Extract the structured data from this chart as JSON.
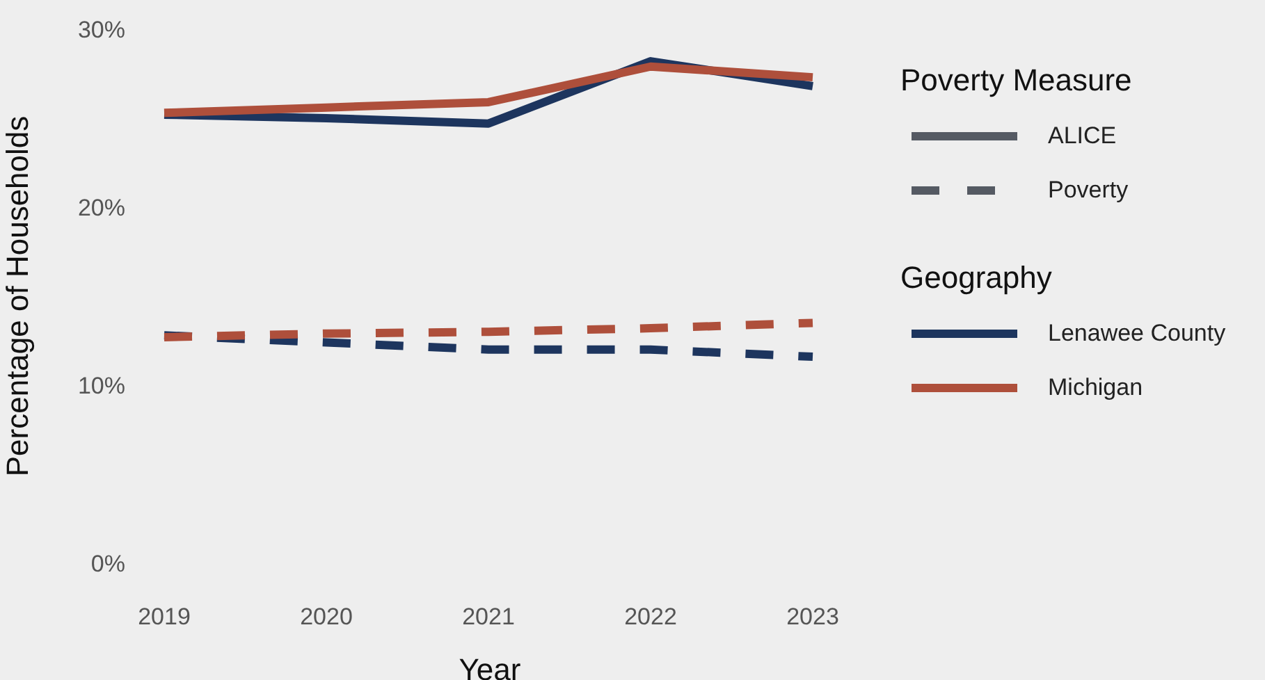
{
  "chart_data": {
    "type": "line",
    "xlabel": "Year",
    "ylabel": "Percentage of Households",
    "legend_title": [
      "Poverty Measure",
      "Geography"
    ],
    "annotations": [
      "ALICE",
      "Poverty"
    ],
    "categories": [
      "2019",
      "2020",
      "2021",
      "2022",
      "2023"
    ],
    "series": [
      {
        "name": "Lenawee County",
        "color": "#1d355e",
        "line_style": "solid",
        "values": [
          25.2,
          25.0,
          24.7,
          28.2,
          26.8
        ]
      },
      {
        "name": "Michigan",
        "color": "#ae4f3b",
        "line_style": "solid",
        "values": [
          25.3,
          25.6,
          25.9,
          27.9,
          27.3
        ]
      },
      {
        "color": "#1d355e",
        "line_style": "dashed",
        "values": [
          12.8,
          12.4,
          12.0,
          12.0,
          11.6
        ]
      },
      {
        "color": "#ae4f3b",
        "line_style": "dashed",
        "values": [
          12.7,
          12.9,
          13.0,
          13.2,
          13.5
        ]
      }
    ],
    "ylim": [
      0,
      30
    ],
    "yticks": [
      {
        "value": 0,
        "label": "0%"
      },
      {
        "value": 10,
        "label": "10%"
      },
      {
        "value": 20,
        "label": "20%"
      },
      {
        "value": 30,
        "label": "30%"
      }
    ],
    "grid": false,
    "legend": "right",
    "marker": "none"
  }
}
